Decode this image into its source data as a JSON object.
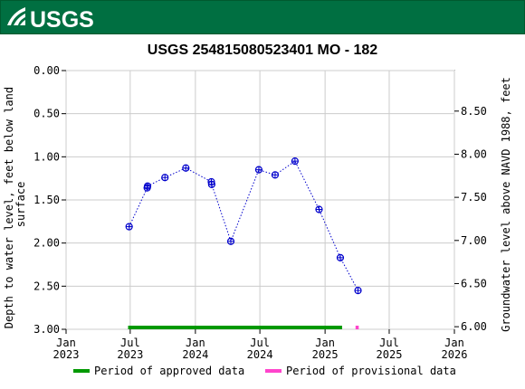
{
  "header": {
    "logo_text": "USGS",
    "color": "#006f41"
  },
  "chart_data": {
    "type": "scatter",
    "title": "USGS 254815080523401 MO - 182",
    "ylabel_left": "Depth to water level, feet below land surface",
    "ylabel_right": "Groundwater level above NAVD 1988, feet",
    "y_left": {
      "range": [
        0,
        3
      ],
      "inverted": true,
      "ticks": [
        0,
        0.5,
        1,
        1.5,
        2,
        2.5,
        3
      ],
      "tick_labels": [
        "0.00",
        "0.50",
        "1.00",
        "1.50",
        "2.00",
        "2.50",
        "3.00"
      ]
    },
    "y_right": {
      "range": [
        5.97,
        8.97
      ],
      "ticks": [
        6.0,
        6.5,
        7.0,
        7.5,
        8.0,
        8.5
      ],
      "tick_labels": [
        "6.00",
        "6.50",
        "7.00",
        "7.50",
        "8.00",
        "8.50"
      ]
    },
    "x_axis": {
      "range": [
        "2023-01-01",
        "2026-01-01"
      ],
      "ticks": [
        {
          "date": "2023-01-01",
          "line1": "Jan",
          "line2": "2023"
        },
        {
          "date": "2023-07-01",
          "line1": "Jul",
          "line2": "2023"
        },
        {
          "date": "2024-01-01",
          "line1": "Jan",
          "line2": "2024"
        },
        {
          "date": "2024-07-01",
          "line1": "Jul",
          "line2": "2024"
        },
        {
          "date": "2025-01-01",
          "line1": "Jan",
          "line2": "2025"
        },
        {
          "date": "2025-07-01",
          "line1": "Jul",
          "line2": "2025"
        },
        {
          "date": "2026-01-01",
          "line1": "Jan",
          "line2": "2026"
        }
      ]
    },
    "grid": true,
    "series": [
      {
        "color": "#0000cc",
        "marker": "circle-cross",
        "line": "dotted",
        "points": [
          {
            "x": "2023-06-28",
            "y": 1.81
          },
          {
            "x": "2023-08-18",
            "y": 1.36
          },
          {
            "x": "2023-08-19",
            "y": 1.34
          },
          {
            "x": "2023-10-07",
            "y": 1.24
          },
          {
            "x": "2023-12-05",
            "y": 1.13
          },
          {
            "x": "2024-02-15",
            "y": 1.29
          },
          {
            "x": "2024-02-16",
            "y": 1.32
          },
          {
            "x": "2024-04-10",
            "y": 1.98
          },
          {
            "x": "2024-06-28",
            "y": 1.15
          },
          {
            "x": "2024-08-13",
            "y": 1.21
          },
          {
            "x": "2024-10-08",
            "y": 1.05
          },
          {
            "x": "2024-12-15",
            "y": 1.61
          },
          {
            "x": "2025-02-13",
            "y": 2.17
          },
          {
            "x": "2025-04-04",
            "y": 2.55
          }
        ]
      }
    ],
    "approval_periods": [
      {
        "type": "approved",
        "start": "2023-06-25",
        "end": "2025-02-18",
        "color": "#009900"
      },
      {
        "type": "provisional",
        "start": "2025-03-28",
        "end": "2025-04-06",
        "color": "#ff44cc"
      }
    ],
    "legend": {
      "placement": "bottom",
      "items": [
        {
          "label": "Period of approved data",
          "color": "#009900"
        },
        {
          "label": "Period of provisional data",
          "color": "#ff44cc"
        }
      ]
    }
  }
}
